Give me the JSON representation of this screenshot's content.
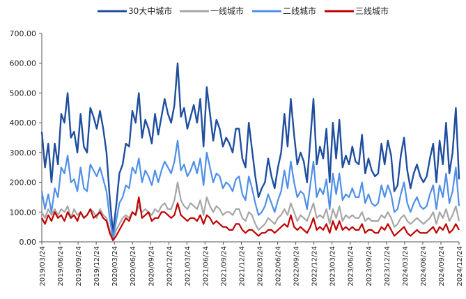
{
  "chart_data": {
    "type": "line",
    "ylim": [
      0,
      700
    ],
    "y_ticks": [
      "0.00",
      "100.00",
      "200.00",
      "300.00",
      "400.00",
      "500.00",
      "600.00",
      "700.00"
    ],
    "x_tick_labels": [
      "2019/03/24",
      "2019/06/24",
      "2019/09/24",
      "2019/12/24",
      "2020/03/24",
      "2020/06/24",
      "2020/09/24",
      "2020/12/24",
      "2021/03/24",
      "2021/06/24",
      "2021/09/24",
      "2021/12/24",
      "2022/03/24",
      "2022/06/24",
      "2022/09/24",
      "2022/12/24",
      "2023/03/24",
      "2023/06/24",
      "2023/09/24",
      "2023/12/24",
      "2024/03/24",
      "2024/06/24",
      "2024/09/24",
      "2024/12/24"
    ],
    "legend_position": "top",
    "grid": false,
    "x_start": "2019/03/24",
    "x_step": "2 weeks",
    "series": [
      {
        "name": "30大中城市",
        "color": "#1f4e9e",
        "values": [
          370,
          250,
          330,
          200,
          330,
          260,
          430,
          400,
          500,
          350,
          370,
          300,
          430,
          320,
          300,
          450,
          420,
          380,
          440,
          380,
          300,
          150,
          30,
          120,
          230,
          260,
          330,
          320,
          440,
          400,
          500,
          350,
          410,
          380,
          330,
          430,
          360,
          420,
          480,
          430,
          400,
          460,
          600,
          420,
          450,
          380,
          420,
          460,
          400,
          480,
          320,
          520,
          430,
          340,
          410,
          380,
          320,
          350,
          330,
          300,
          380,
          380,
          280,
          250,
          400,
          310,
          220,
          150,
          180,
          200,
          280,
          220,
          180,
          250,
          300,
          430,
          320,
          480,
          360,
          260,
          300,
          270,
          200,
          340,
          480,
          260,
          320,
          280,
          380,
          200,
          400,
          280,
          410,
          250,
          290,
          260,
          320,
          270,
          260,
          360,
          230,
          280,
          240,
          220,
          230,
          330,
          260,
          340,
          290,
          170,
          190,
          290,
          350,
          240,
          180,
          230,
          260,
          220,
          200,
          220,
          280,
          330,
          200,
          340,
          260,
          400,
          230,
          300,
          450,
          210
        ]
      },
      {
        "name": "一线城市",
        "color": "#a6a6a6",
        "values": [
          100,
          80,
          110,
          90,
          110,
          90,
          110,
          100,
          120,
          80,
          110,
          90,
          100,
          80,
          90,
          110,
          100,
          80,
          110,
          90,
          80,
          40,
          10,
          40,
          60,
          80,
          90,
          80,
          100,
          90,
          120,
          100,
          110,
          100,
          90,
          110,
          100,
          120,
          130,
          110,
          110,
          140,
          200,
          140,
          120,
          110,
          130,
          120,
          110,
          140,
          90,
          150,
          120,
          100,
          120,
          110,
          90,
          100,
          100,
          90,
          110,
          110,
          80,
          70,
          100,
          90,
          60,
          40,
          50,
          60,
          80,
          70,
          60,
          80,
          90,
          110,
          90,
          130,
          100,
          70,
          90,
          80,
          70,
          100,
          130,
          80,
          90,
          80,
          110,
          60,
          110,
          80,
          120,
          70,
          90,
          80,
          90,
          80,
          80,
          100,
          70,
          80,
          70,
          70,
          70,
          90,
          80,
          100,
          80,
          50,
          60,
          80,
          90,
          70,
          60,
          70,
          80,
          70,
          60,
          70,
          80,
          100,
          60,
          100,
          80,
          110,
          70,
          90,
          120,
          70
        ]
      },
      {
        "name": "二线城市",
        "color": "#4f8fe8",
        "values": [
          170,
          110,
          160,
          100,
          180,
          150,
          250,
          230,
          290,
          200,
          210,
          170,
          250,
          180,
          170,
          260,
          240,
          220,
          250,
          210,
          170,
          80,
          15,
          70,
          130,
          150,
          190,
          180,
          250,
          230,
          280,
          200,
          240,
          220,
          190,
          240,
          200,
          240,
          270,
          250,
          230,
          270,
          340,
          240,
          260,
          220,
          240,
          270,
          230,
          280,
          190,
          300,
          250,
          200,
          230,
          220,
          180,
          200,
          190,
          170,
          210,
          220,
          160,
          140,
          220,
          180,
          130,
          90,
          100,
          120,
          160,
          130,
          100,
          140,
          170,
          240,
          180,
          270,
          200,
          150,
          170,
          160,
          110,
          190,
          270,
          150,
          180,
          160,
          210,
          110,
          230,
          160,
          230,
          140,
          160,
          150,
          180,
          150,
          150,
          200,
          130,
          160,
          130,
          120,
          130,
          190,
          150,
          190,
          160,
          100,
          110,
          160,
          200,
          130,
          100,
          130,
          150,
          120,
          110,
          120,
          160,
          190,
          110,
          190,
          150,
          230,
          130,
          170,
          250,
          120
        ]
      },
      {
        "name": "三线城市",
        "color": "#c00000",
        "values": [
          80,
          60,
          90,
          70,
          100,
          80,
          90,
          70,
          100,
          80,
          90,
          70,
          100,
          80,
          90,
          110,
          80,
          90,
          100,
          80,
          70,
          30,
          5,
          20,
          40,
          60,
          80,
          70,
          100,
          90,
          150,
          80,
          90,
          100,
          70,
          80,
          80,
          100,
          100,
          90,
          80,
          90,
          130,
          90,
          80,
          70,
          80,
          80,
          70,
          90,
          60,
          90,
          80,
          60,
          70,
          60,
          50,
          50,
          40,
          40,
          60,
          60,
          40,
          30,
          40,
          40,
          30,
          20,
          30,
          30,
          40,
          40,
          30,
          40,
          50,
          60,
          50,
          90,
          50,
          40,
          50,
          40,
          30,
          50,
          80,
          40,
          50,
          40,
          60,
          30,
          70,
          40,
          70,
          40,
          50,
          40,
          50,
          40,
          40,
          60,
          30,
          40,
          40,
          30,
          30,
          50,
          40,
          60,
          40,
          20,
          30,
          40,
          50,
          30,
          20,
          30,
          40,
          30,
          30,
          30,
          40,
          50,
          30,
          50,
          40,
          60,
          30,
          40,
          60,
          40
        ]
      }
    ]
  }
}
